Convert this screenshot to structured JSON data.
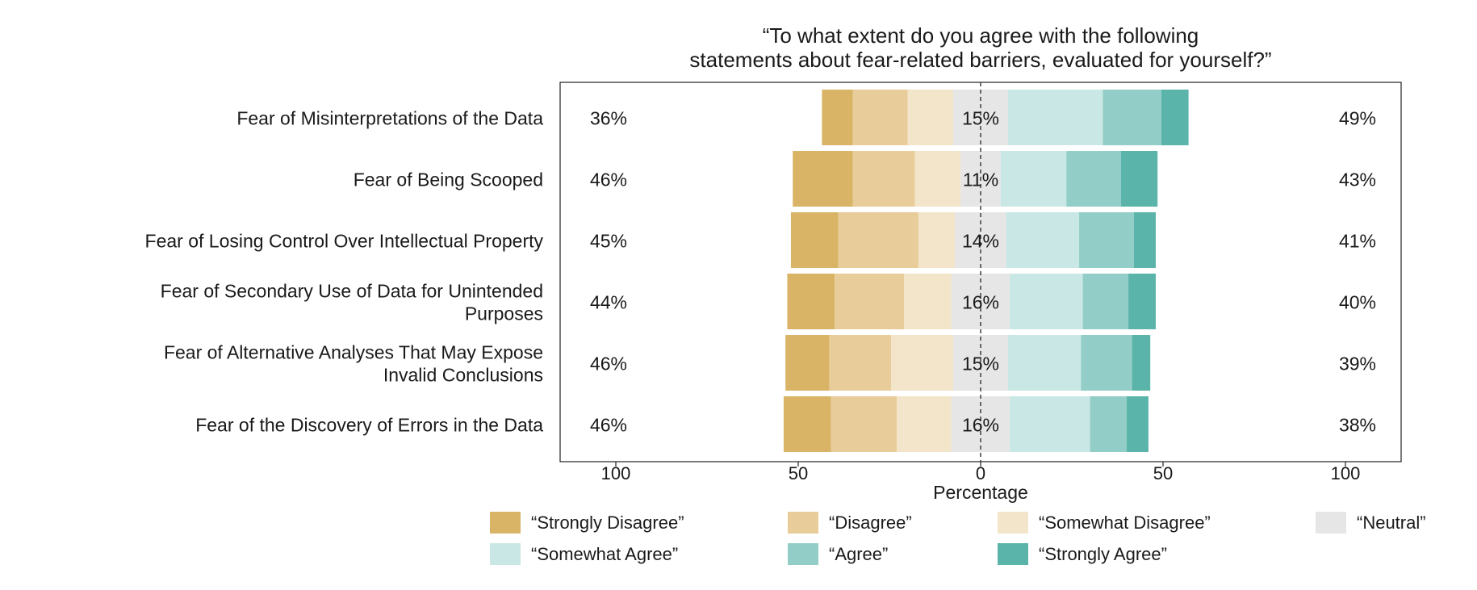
{
  "chart_data": {
    "type": "bar",
    "title": "“To what extent do you agree with the following statements about fear-related barriers, evaluated for yourself?”",
    "title_lines": [
      "“To what extent do you agree with the following",
      "statements about fear-related barriers, evaluated for yourself?”"
    ],
    "xlabel": "Percentage",
    "ylabel": "",
    "xlim": [
      -100,
      100
    ],
    "x_ticks": [
      -100,
      -50,
      0,
      50,
      100
    ],
    "x_tick_labels": [
      "100",
      "50",
      "0",
      "50",
      "100"
    ],
    "grid": false,
    "legend_position": "bottom",
    "categories": [
      {
        "label_lines": [
          "Fear of Misinterpretations of the Data"
        ]
      },
      {
        "label_lines": [
          "Fear of Being Scooped"
        ]
      },
      {
        "label_lines": [
          "Fear of Losing Control Over Intellectual Property"
        ]
      },
      {
        "label_lines": [
          "Fear of Secondary Use of Data for Unintended",
          "Purposes"
        ]
      },
      {
        "label_lines": [
          "Fear of Alternative Analyses That May Expose",
          "Invalid Conclusions"
        ]
      },
      {
        "label_lines": [
          "Fear of the Discovery of Errors in the Data"
        ]
      }
    ],
    "series": [
      {
        "name": "“Strongly Disagree”",
        "color": "#D9B466",
        "side": "negative",
        "values": [
          8.5,
          16.5,
          13,
          13,
          12,
          13
        ]
      },
      {
        "name": "“Disagree”",
        "color": "#E8CC99",
        "side": "negative",
        "values": [
          15,
          17,
          22,
          19,
          17,
          18
        ]
      },
      {
        "name": "“Somewhat Disagree”",
        "color": "#F3E5CA",
        "side": "negative",
        "values": [
          12.5,
          12.5,
          10,
          13,
          17,
          15
        ]
      },
      {
        "name": "“Neutral”",
        "color": "#E6E6E6",
        "side": "neutral",
        "values": [
          15,
          11,
          14,
          16,
          15,
          16
        ]
      },
      {
        "name": "“Somewhat Agree”",
        "color": "#C9E7E4",
        "side": "positive",
        "values": [
          26,
          18,
          20,
          20,
          20,
          22
        ]
      },
      {
        "name": "“Agree”",
        "color": "#92CEC7",
        "side": "positive",
        "values": [
          16,
          15,
          15,
          12.5,
          14,
          10
        ]
      },
      {
        "name": "“Strongly Agree”",
        "color": "#5AB4A9",
        "side": "positive",
        "values": [
          7.5,
          10,
          6,
          7.5,
          5,
          6
        ]
      }
    ],
    "left_totals": [
      "36%",
      "46%",
      "45%",
      "44%",
      "46%",
      "46%"
    ],
    "neutral_totals": [
      "15%",
      "11%",
      "14%",
      "16%",
      "15%",
      "16%"
    ],
    "right_totals": [
      "49%",
      "43%",
      "41%",
      "40%",
      "39%",
      "38%"
    ]
  }
}
